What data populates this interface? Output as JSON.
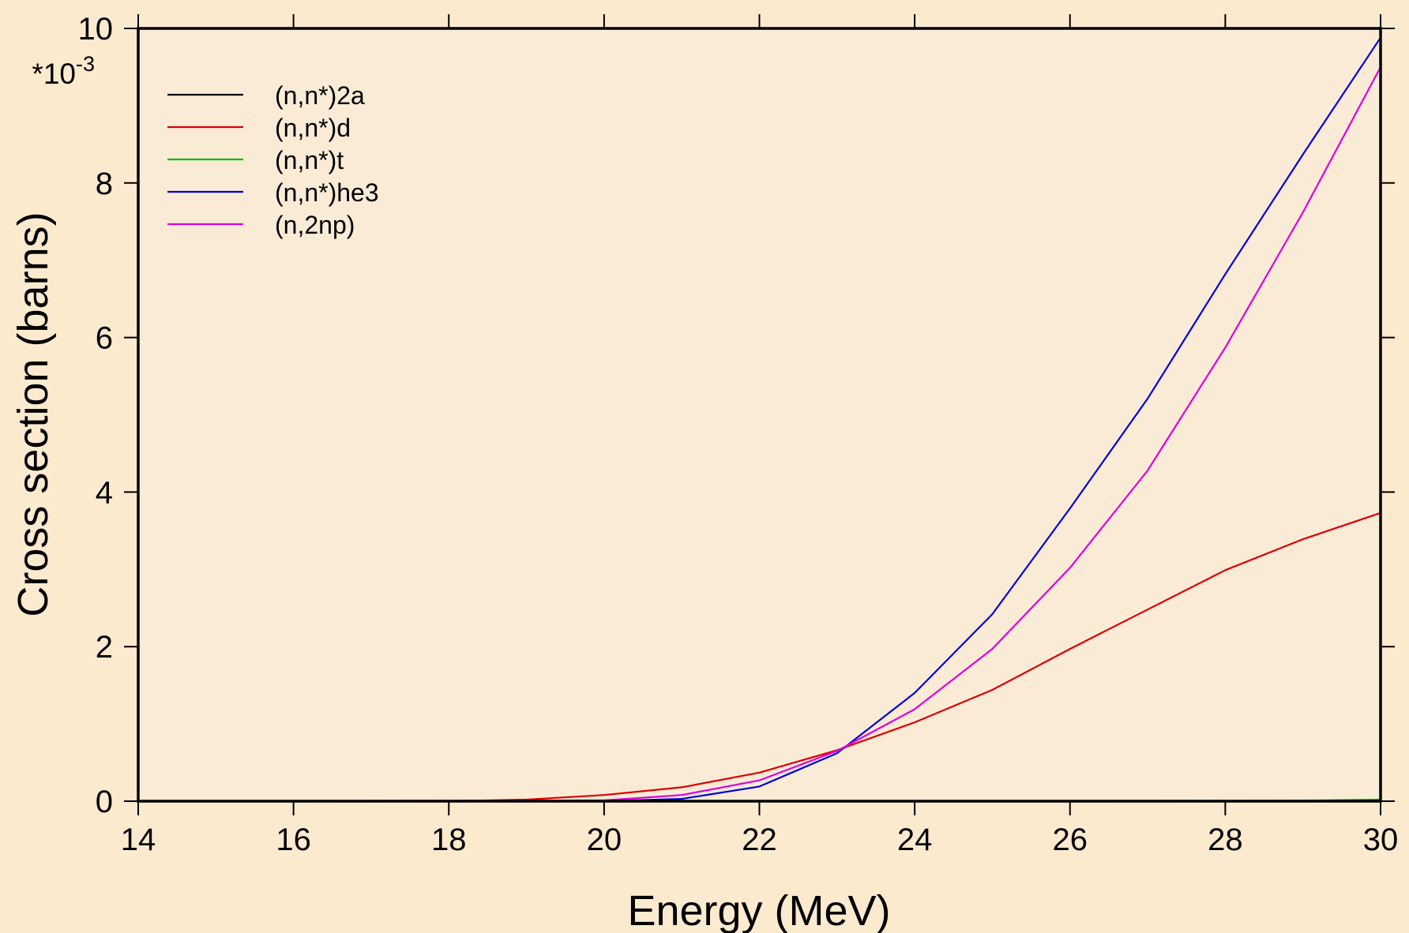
{
  "colors": {
    "page_background": "#fceacf",
    "plot_background": "#faebd7",
    "axis": "#000000"
  },
  "chart_data": {
    "type": "line",
    "title": "",
    "xlabel": "Energy (MeV)",
    "ylabel": "Cross section (barns)",
    "y_multiplier_base": "*10",
    "y_multiplier_exp": "-3",
    "xlim": [
      14,
      30
    ],
    "ylim": [
      0,
      10
    ],
    "x_ticks": [
      14,
      16,
      18,
      20,
      22,
      24,
      26,
      28,
      30
    ],
    "y_ticks": [
      0,
      2,
      4,
      6,
      8,
      10
    ],
    "grid": false,
    "legend_position": "top-left",
    "series": [
      {
        "name": "(n,n*)2a",
        "color": "#000000",
        "x": [
          14,
          30
        ],
        "y": [
          0.0,
          0.0
        ]
      },
      {
        "name": "(n,n*)d",
        "color": "#dd0000",
        "x": [
          14,
          18,
          19,
          20,
          21,
          22,
          23,
          24,
          25,
          26,
          27,
          28,
          29,
          30
        ],
        "y": [
          0.0,
          0.0,
          0.02,
          0.08,
          0.18,
          0.37,
          0.66,
          1.02,
          1.44,
          1.97,
          2.48,
          2.99,
          3.39,
          3.73
        ]
      },
      {
        "name": "(n,n*)t",
        "color": "#00bb00",
        "x": [
          14,
          22,
          24,
          26,
          28,
          29,
          30
        ],
        "y": [
          0.0,
          0.0,
          0.002,
          0.004,
          0.006,
          0.008,
          0.02
        ]
      },
      {
        "name": "(n,n*)he3",
        "color": "#0000dd",
        "x": [
          14,
          20,
          21,
          22,
          23,
          24,
          25,
          26,
          27,
          28,
          29,
          30
        ],
        "y": [
          0.0,
          0.0,
          0.03,
          0.19,
          0.62,
          1.4,
          2.42,
          3.79,
          5.21,
          6.82,
          8.37,
          9.88
        ]
      },
      {
        "name": "(n,2np)",
        "color": "#dd00dd",
        "x": [
          14,
          20,
          21,
          22,
          23,
          24,
          25,
          26,
          27,
          28,
          29,
          30
        ],
        "y": [
          0.0,
          0.01,
          0.08,
          0.27,
          0.65,
          1.19,
          1.97,
          3.02,
          4.28,
          5.87,
          7.62,
          9.5
        ]
      }
    ]
  }
}
